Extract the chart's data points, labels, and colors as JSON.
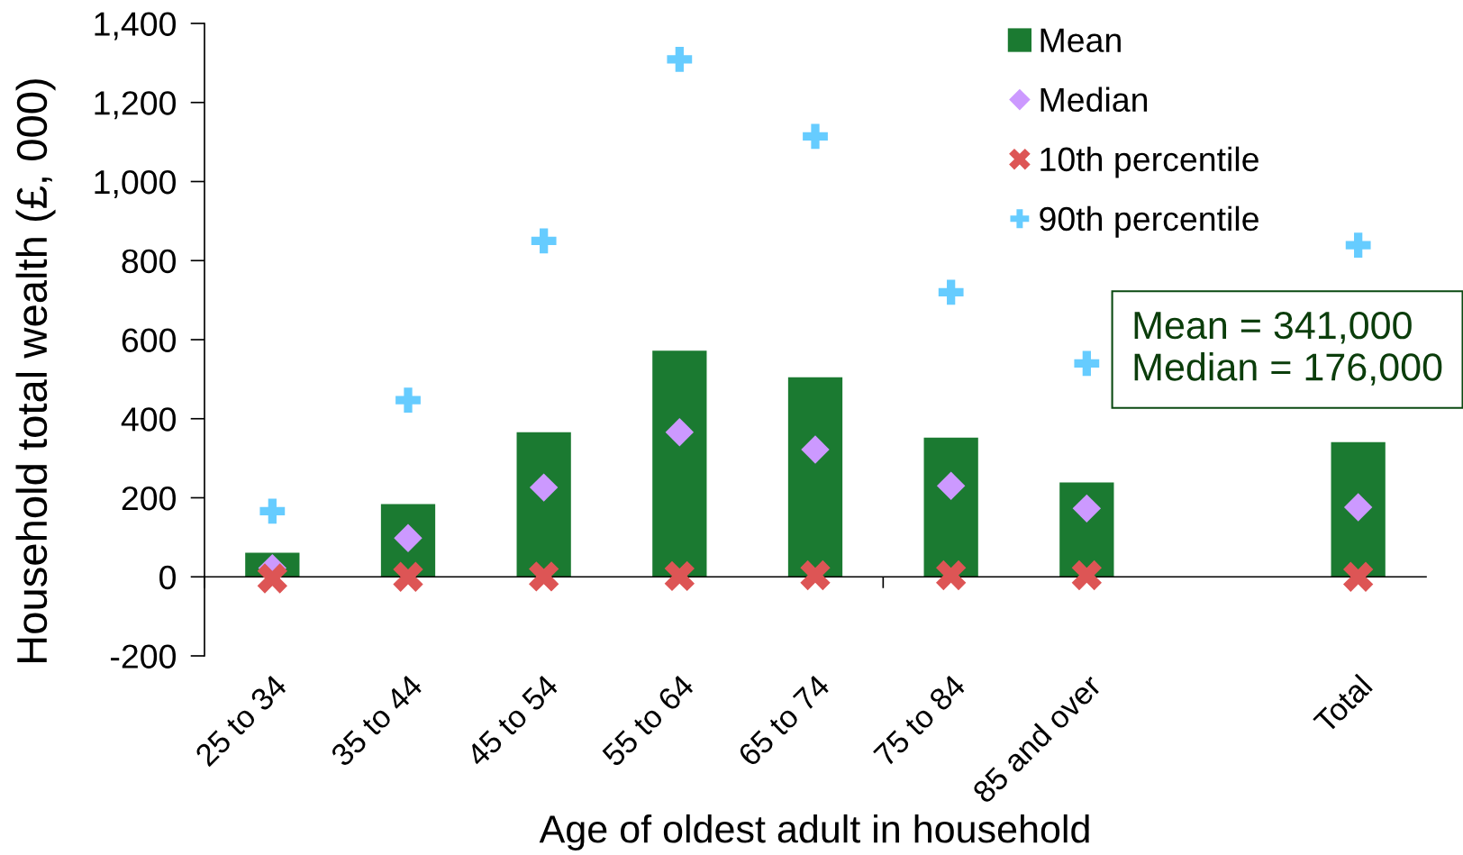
{
  "chart_data": {
    "type": "bar",
    "categories": [
      "25 to 34",
      "35 to 44",
      "45 to 54",
      "55 to 64",
      "65 to 74",
      "75 to 84",
      "85 and over",
      null,
      "Total"
    ],
    "series": [
      {
        "name": "Mean",
        "color": "#1b7a31",
        "values": [
          61,
          184,
          366,
          572,
          505,
          352,
          239,
          null,
          341
        ]
      },
      {
        "name": "Median",
        "type": "scatter",
        "marker": "diamond",
        "color": "#cc99ff",
        "values": [
          22,
          98,
          226,
          366,
          322,
          230,
          173,
          null,
          176
        ]
      },
      {
        "name": "10th percentile",
        "type": "scatter",
        "marker": "cross",
        "color": "#dd5555",
        "values": [
          -4,
          0,
          1,
          2,
          4,
          4,
          4,
          null,
          0
        ]
      },
      {
        "name": "90th percentile",
        "type": "scatter",
        "marker": "plus",
        "color": "#66ccff",
        "values": [
          166,
          447,
          850,
          1309,
          1114,
          720,
          540,
          null,
          839
        ]
      }
    ],
    "xlabel": "Age of oldest adult in household",
    "ylabel": "Household total wealth (£, 000)",
    "ylim": [
      -200,
      1400
    ],
    "yticks": [
      -200,
      0,
      200,
      400,
      600,
      800,
      {
        "value": 1000,
        "label": "1,000"
      },
      {
        "value": 1200,
        "label": "1,200"
      },
      {
        "value": 1400,
        "label": "1,400"
      }
    ],
    "annotations": [
      "Mean = 341,000\nMedian = 176,000"
    ],
    "legend": "top right"
  }
}
